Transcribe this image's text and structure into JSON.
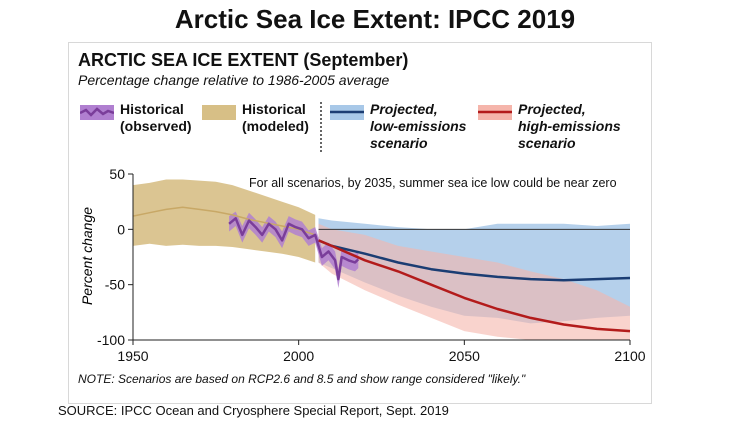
{
  "slide_title": "Arctic Sea Ice Extent: IPCC 2019",
  "source": "SOURCE: IPCC Ocean and Cryosphere Special Report, Sept. 2019",
  "legend": [
    {
      "line1": "Historical",
      "line2": "(observed)",
      "line3": ""
    },
    {
      "line1": "Historical",
      "line2": "(modeled)",
      "line3": ""
    },
    {
      "line1": "Projected,",
      "line2": "low-emissions",
      "line3": "scenario"
    },
    {
      "line1": "Projected,",
      "line2": "high-emissions",
      "line3": "scenario"
    }
  ],
  "colors": {
    "observed_line": "#7a3d9a",
    "observed_band": "#b07fd0",
    "modeled_band": "#d7bf86",
    "modeled_line": "#c8a866",
    "low_line": "#1b3d73",
    "low_band": "#a8c8e8",
    "high_line": "#b31b1b",
    "high_band": "#f5b5ab"
  },
  "chart_data": {
    "type": "line",
    "title": "ARCTIC SEA ICE EXTENT (September)",
    "subtitle": "Percentage change relative to 1986-2005 average",
    "ylabel": "Percent change",
    "xlim": [
      1950,
      2100
    ],
    "ylim": [
      -100,
      50
    ],
    "x_ticks": [
      1950,
      2000,
      2050,
      2100
    ],
    "y_ticks": [
      50,
      0,
      -50,
      -100
    ],
    "x_tick_labels": [
      "1950",
      "2000",
      "2050",
      "2100"
    ],
    "y_tick_labels": [
      "50",
      "0",
      "-50",
      "-100"
    ],
    "annotation": "For all scenarios, by 2035, summer sea ice low could be near zero",
    "note": "NOTE: Scenarios are based on RCP2.6 and 8.5 and show range considered \"likely.\"",
    "series": [
      {
        "name": "Historical (modeled)",
        "x": [
          1950,
          1955,
          1960,
          1965,
          1970,
          1975,
          1980,
          1985,
          1990,
          1995,
          2000,
          2005
        ],
        "values": [
          12,
          15,
          18,
          20,
          18,
          16,
          13,
          9,
          6,
          3,
          0,
          -5
        ],
        "band_upper": [
          40,
          42,
          45,
          45,
          44,
          43,
          40,
          35,
          30,
          25,
          20,
          13
        ],
        "band_lower": [
          -15,
          -13,
          -15,
          -14,
          -15,
          -15,
          -16,
          -18,
          -20,
          -22,
          -25,
          -30
        ]
      },
      {
        "name": "Historical (observed)",
        "x": [
          1979,
          1981,
          1983,
          1985,
          1987,
          1989,
          1991,
          1993,
          1995,
          1997,
          1999,
          2001,
          2003,
          2005,
          2007,
          2009,
          2011,
          2012,
          2013,
          2015,
          2017,
          2018
        ],
        "values": [
          5,
          10,
          -5,
          8,
          2,
          -5,
          5,
          0,
          -10,
          5,
          2,
          0,
          -8,
          -5,
          -25,
          -20,
          -28,
          -45,
          -25,
          -28,
          -30,
          -27
        ],
        "band_upper": [
          12,
          16,
          3,
          15,
          9,
          2,
          12,
          7,
          -2,
          12,
          9,
          7,
          -1,
          2,
          -17,
          -12,
          -20,
          -36,
          -17,
          -20,
          -22,
          -19
        ],
        "band_lower": [
          -2,
          3,
          -12,
          1,
          -5,
          -12,
          -2,
          -7,
          -17,
          -2,
          -5,
          -7,
          -15,
          -12,
          -33,
          -28,
          -36,
          -53,
          -33,
          -36,
          -38,
          -35
        ]
      },
      {
        "name": "Projected, low-emissions scenario",
        "x": [
          2006,
          2010,
          2020,
          2030,
          2040,
          2050,
          2060,
          2070,
          2080,
          2090,
          2100
        ],
        "values": [
          -10,
          -15,
          -22,
          -30,
          -36,
          -40,
          -43,
          -45,
          -46,
          -45,
          -44
        ],
        "band_upper": [
          10,
          8,
          5,
          2,
          0,
          0,
          5,
          5,
          5,
          3,
          5
        ],
        "band_lower": [
          -30,
          -35,
          -48,
          -60,
          -70,
          -78,
          -80,
          -85,
          -83,
          -80,
          -78
        ]
      },
      {
        "name": "Projected, high-emissions scenario",
        "x": [
          2006,
          2010,
          2020,
          2030,
          2040,
          2050,
          2060,
          2070,
          2080,
          2090,
          2100
        ],
        "values": [
          -10,
          -15,
          -28,
          -38,
          -50,
          -62,
          -72,
          -80,
          -86,
          -90,
          -92
        ],
        "band_upper": [
          5,
          0,
          -5,
          -15,
          -20,
          -25,
          -30,
          -38,
          -45,
          -55,
          -70
        ],
        "band_lower": [
          -30,
          -40,
          -55,
          -68,
          -80,
          -92,
          -97,
          -100,
          -100,
          -100,
          -100
        ]
      }
    ]
  }
}
